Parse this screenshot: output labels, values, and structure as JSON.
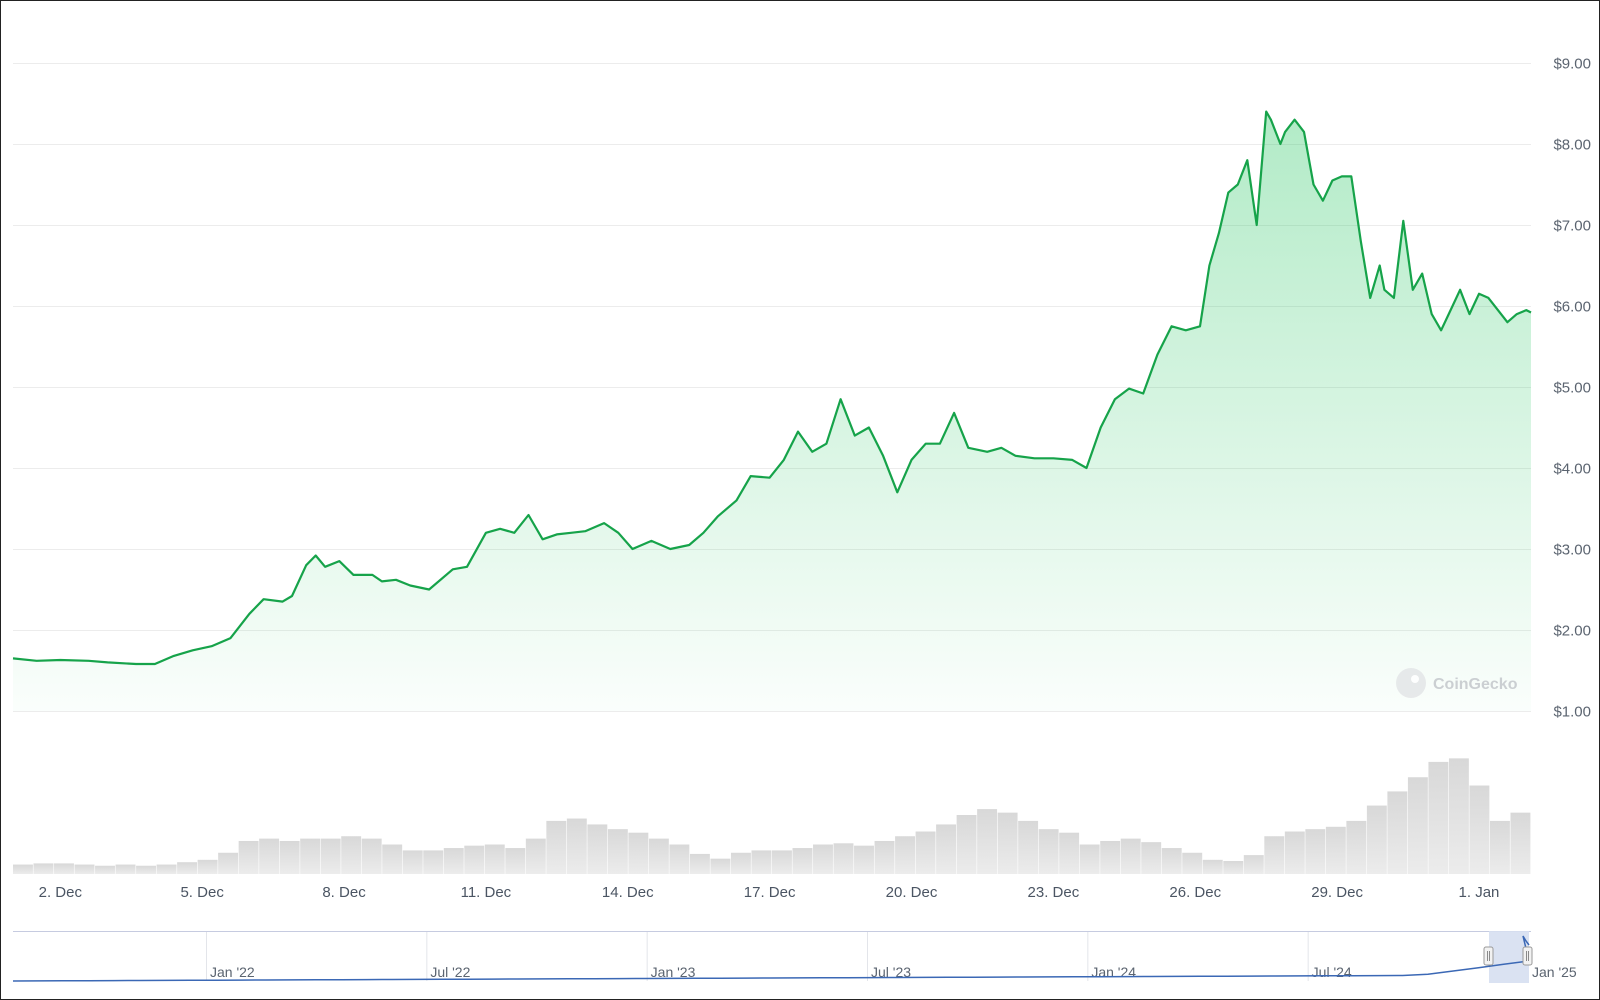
{
  "chart_data": {
    "type": "area",
    "currency_prefix": "$",
    "y_ticks": [
      "$9.00",
      "$8.00",
      "$7.00",
      "$6.00",
      "$5.00",
      "$4.00",
      "$3.00",
      "$2.00",
      "$1.00"
    ],
    "y_tick_values": [
      9,
      8,
      7,
      6,
      5,
      4,
      3,
      2,
      1
    ],
    "ylim": [
      1,
      9
    ],
    "x_ticks": [
      "2. Dec",
      "5. Dec",
      "8. Dec",
      "11. Dec",
      "14. Dec",
      "17. Dec",
      "20. Dec",
      "23. Dec",
      "26. Dec",
      "29. Dec",
      "1. Jan"
    ],
    "x_tick_days": [
      1,
      4,
      7,
      10,
      13,
      16,
      19,
      22,
      25,
      28,
      31
    ],
    "xlim_days": [
      0,
      32.1
    ],
    "grid": true,
    "line_color": "#16a34a",
    "area_color": "#22c55e",
    "price_series": {
      "name": "Price",
      "x_days": [
        0,
        0.5,
        1,
        1.6,
        2,
        2.6,
        3,
        3.4,
        3.8,
        4.2,
        4.6,
        5,
        5.3,
        5.7,
        5.9,
        6.2,
        6.4,
        6.6,
        6.9,
        7.2,
        7.6,
        7.8,
        8.1,
        8.4,
        8.8,
        9.3,
        9.6,
        10,
        10.3,
        10.6,
        10.9,
        11.2,
        11.5,
        11.8,
        12.1,
        12.5,
        12.8,
        13.1,
        13.5,
        13.9,
        14.3,
        14.6,
        14.9,
        15.3,
        15.6,
        16,
        16.3,
        16.6,
        16.9,
        17.2,
        17.5,
        17.8,
        18.1,
        18.4,
        18.7,
        19,
        19.3,
        19.6,
        19.9,
        20.2,
        20.6,
        20.9,
        21.2,
        21.6,
        22,
        22.4,
        22.7,
        23,
        23.3,
        23.6,
        23.9,
        24.2,
        24.5,
        24.8,
        25.1,
        25.3,
        25.5,
        25.7,
        25.9,
        26.1,
        26.3,
        26.5,
        26.6,
        26.8,
        26.9,
        27.1,
        27.3,
        27.5,
        27.7,
        27.9,
        28.1,
        28.3,
        28.5,
        28.7,
        28.9,
        29,
        29.2,
        29.4,
        29.6,
        29.8,
        30,
        30.2,
        30.4,
        30.6,
        30.8,
        31,
        31.2,
        31.4,
        31.6,
        31.8,
        32,
        32.1
      ],
      "values": [
        1.65,
        1.62,
        1.63,
        1.62,
        1.6,
        1.58,
        1.58,
        1.68,
        1.75,
        1.8,
        1.9,
        2.2,
        2.38,
        2.35,
        2.42,
        2.8,
        2.92,
        2.78,
        2.85,
        2.68,
        2.68,
        2.6,
        2.62,
        2.55,
        2.5,
        2.75,
        2.78,
        3.2,
        3.25,
        3.2,
        3.42,
        3.12,
        3.18,
        3.2,
        3.22,
        3.32,
        3.2,
        3.0,
        3.1,
        3.0,
        3.05,
        3.2,
        3.4,
        3.6,
        3.9,
        3.88,
        4.1,
        4.45,
        4.2,
        4.3,
        4.85,
        4.4,
        4.5,
        4.15,
        3.7,
        4.1,
        4.3,
        4.3,
        4.68,
        4.25,
        4.2,
        4.25,
        4.15,
        4.12,
        4.12,
        4.1,
        4.0,
        4.5,
        4.85,
        4.98,
        4.92,
        5.4,
        5.75,
        5.7,
        5.75,
        6.5,
        6.9,
        7.4,
        7.5,
        7.8,
        7.0,
        8.4,
        8.3,
        8.0,
        8.15,
        8.3,
        8.15,
        7.5,
        7.3,
        7.55,
        7.6,
        7.6,
        6.8,
        6.1,
        6.5,
        6.2,
        6.1,
        7.05,
        6.2,
        6.4,
        5.9,
        5.7,
        5.95,
        6.2,
        5.9,
        6.15,
        6.1,
        5.95,
        5.8,
        5.9,
        5.95,
        5.92
      ]
    },
    "volume_series": {
      "name": "Volume",
      "relative_values": [
        0.08,
        0.09,
        0.09,
        0.08,
        0.07,
        0.08,
        0.07,
        0.08,
        0.1,
        0.12,
        0.18,
        0.28,
        0.3,
        0.28,
        0.3,
        0.3,
        0.32,
        0.3,
        0.25,
        0.2,
        0.2,
        0.22,
        0.24,
        0.25,
        0.22,
        0.3,
        0.45,
        0.47,
        0.42,
        0.38,
        0.35,
        0.3,
        0.25,
        0.17,
        0.13,
        0.18,
        0.2,
        0.2,
        0.22,
        0.25,
        0.26,
        0.24,
        0.28,
        0.32,
        0.36,
        0.42,
        0.5,
        0.55,
        0.52,
        0.45,
        0.38,
        0.35,
        0.25,
        0.28,
        0.3,
        0.27,
        0.22,
        0.18,
        0.12,
        0.11,
        0.16,
        0.32,
        0.36,
        0.38,
        0.4,
        0.45,
        0.58,
        0.7,
        0.82,
        0.95,
        0.98,
        0.75,
        0.45,
        0.52
      ]
    }
  },
  "navigator": {
    "labels": [
      "Jan '22",
      "Jul '22",
      "Jan '23",
      "Jul '23",
      "Jan '24",
      "Jul '24",
      "Jan '25"
    ],
    "label_color": "#5b6470",
    "line_color": "#3b68b5",
    "selection_color": "#d6dff1"
  },
  "watermark": {
    "text": "CoinGecko",
    "icon": "coingecko-logo-icon"
  }
}
